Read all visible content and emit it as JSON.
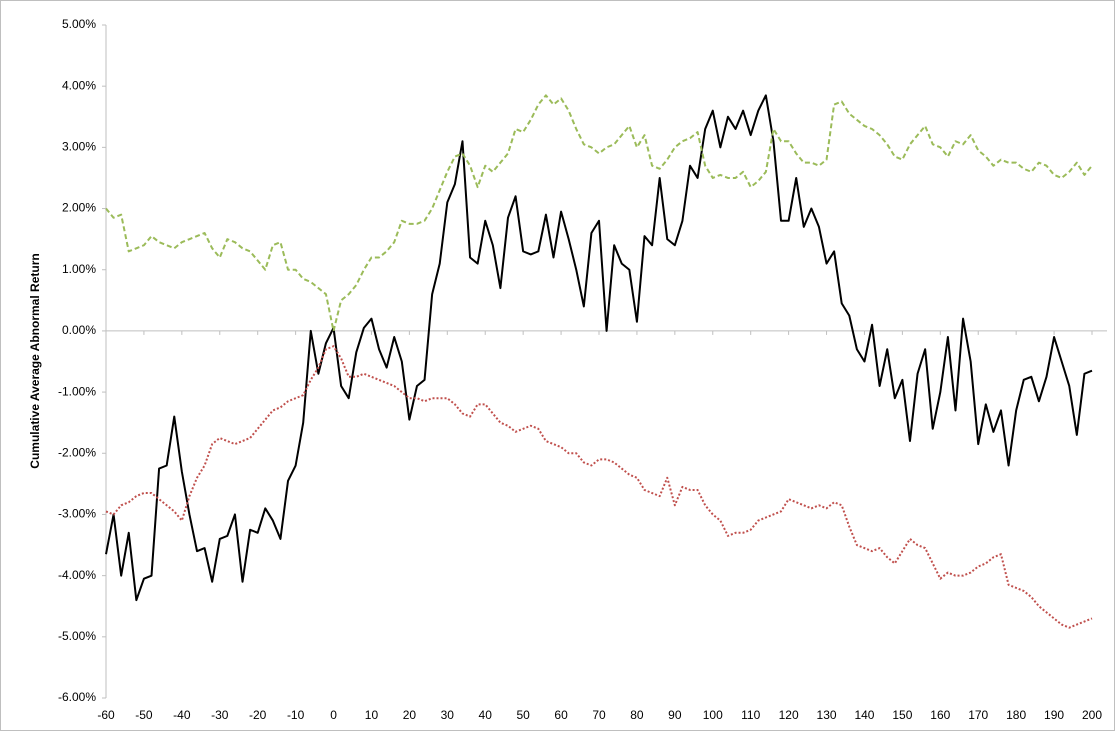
{
  "chart_data": {
    "type": "line",
    "y_label": "Cumulative Average Abnormal Return",
    "x": [
      -60,
      -58,
      -56,
      -54,
      -52,
      -50,
      -48,
      -46,
      -44,
      -42,
      -40,
      -38,
      -36,
      -34,
      -32,
      -30,
      -28,
      -26,
      -24,
      -22,
      -20,
      -18,
      -16,
      -14,
      -12,
      -10,
      -8,
      -6,
      -4,
      -2,
      0,
      2,
      4,
      6,
      8,
      10,
      12,
      14,
      16,
      18,
      20,
      22,
      24,
      26,
      28,
      30,
      32,
      34,
      36,
      38,
      40,
      42,
      44,
      46,
      48,
      50,
      52,
      54,
      56,
      58,
      60,
      62,
      64,
      66,
      68,
      70,
      72,
      74,
      76,
      78,
      80,
      82,
      84,
      86,
      88,
      90,
      92,
      94,
      96,
      98,
      100,
      102,
      104,
      106,
      108,
      110,
      112,
      114,
      116,
      118,
      120,
      122,
      124,
      126,
      128,
      130,
      132,
      134,
      136,
      138,
      140,
      142,
      144,
      146,
      148,
      150,
      152,
      154,
      156,
      158,
      160,
      162,
      164,
      166,
      168,
      170,
      172,
      174,
      176,
      178,
      180,
      182,
      184,
      186,
      188,
      190,
      192,
      194,
      196,
      198,
      200
    ],
    "series": [
      {
        "color": "#000000",
        "line_style": "solid",
        "values": [
          -3.65,
          -3.0,
          -4.0,
          -3.3,
          -4.4,
          -4.05,
          -4.0,
          -2.25,
          -2.2,
          -1.4,
          -2.3,
          -3.0,
          -3.6,
          -3.55,
          -4.1,
          -3.4,
          -3.35,
          -3.0,
          -4.1,
          -3.25,
          -3.3,
          -2.9,
          -3.1,
          -3.4,
          -2.45,
          -2.2,
          -1.5,
          0.0,
          -0.7,
          -0.2,
          0.05,
          -0.9,
          -1.1,
          -0.35,
          0.05,
          0.2,
          -0.3,
          -0.6,
          -0.1,
          -0.5,
          -1.45,
          -0.9,
          -0.8,
          0.6,
          1.1,
          2.1,
          2.4,
          3.1,
          1.2,
          1.1,
          1.8,
          1.4,
          0.7,
          1.85,
          2.2,
          1.3,
          1.25,
          1.3,
          1.9,
          1.2,
          1.95,
          1.5,
          1.0,
          0.4,
          1.6,
          1.8,
          0.0,
          1.4,
          1.1,
          1.0,
          0.15,
          1.55,
          1.4,
          2.5,
          1.5,
          1.4,
          1.8,
          2.7,
          2.5,
          3.3,
          3.6,
          3.0,
          3.5,
          3.3,
          3.6,
          3.2,
          3.6,
          3.85,
          3.1,
          1.8,
          1.8,
          2.5,
          1.7,
          2.0,
          1.7,
          1.1,
          1.3,
          0.45,
          0.25,
          -0.3,
          -0.5,
          0.1,
          -0.9,
          -0.3,
          -1.1,
          -0.8,
          -1.8,
          -0.7,
          -0.3,
          -1.6,
          -1.0,
          -0.1,
          -1.3,
          0.2,
          -0.5,
          -1.85,
          -1.2,
          -1.65,
          -1.3,
          -2.2,
          -1.3,
          -0.8,
          -0.75,
          -1.15,
          -0.75,
          -0.1,
          -0.5,
          -0.9,
          -1.7,
          -0.7,
          -0.65
        ]
      },
      {
        "color": "#9bbb59",
        "line_style": "dashed",
        "values": [
          2.0,
          1.85,
          1.9,
          1.3,
          1.35,
          1.4,
          1.55,
          1.45,
          1.4,
          1.35,
          1.45,
          1.5,
          1.55,
          1.6,
          1.35,
          1.2,
          1.5,
          1.45,
          1.35,
          1.3,
          1.15,
          1.0,
          1.4,
          1.45,
          1.0,
          1.0,
          0.85,
          0.8,
          0.7,
          0.6,
          0.0,
          0.5,
          0.6,
          0.75,
          1.0,
          1.2,
          1.2,
          1.3,
          1.45,
          1.8,
          1.75,
          1.75,
          1.8,
          2.0,
          2.3,
          2.6,
          2.85,
          2.9,
          2.7,
          2.35,
          2.7,
          2.6,
          2.75,
          2.9,
          3.3,
          3.25,
          3.45,
          3.7,
          3.85,
          3.7,
          3.8,
          3.6,
          3.3,
          3.05,
          3.0,
          2.9,
          3.0,
          3.05,
          3.2,
          3.35,
          3.0,
          3.2,
          2.7,
          2.65,
          2.8,
          3.0,
          3.1,
          3.15,
          3.25,
          2.7,
          2.5,
          2.55,
          2.5,
          2.5,
          2.6,
          2.35,
          2.45,
          2.6,
          3.3,
          3.1,
          3.1,
          2.9,
          2.75,
          2.75,
          2.7,
          2.8,
          3.7,
          3.75,
          3.55,
          3.45,
          3.35,
          3.3,
          3.2,
          3.05,
          2.85,
          2.8,
          3.05,
          3.2,
          3.35,
          3.05,
          3.0,
          2.85,
          3.1,
          3.05,
          3.2,
          2.95,
          2.85,
          2.7,
          2.8,
          2.75,
          2.75,
          2.65,
          2.6,
          2.75,
          2.7,
          2.55,
          2.5,
          2.6,
          2.75,
          2.55,
          2.7
        ]
      },
      {
        "color": "#c0504d",
        "line_style": "dotted",
        "values": [
          -2.95,
          -3.0,
          -2.85,
          -2.8,
          -2.7,
          -2.65,
          -2.65,
          -2.75,
          -2.85,
          -2.95,
          -3.1,
          -2.7,
          -2.4,
          -2.2,
          -1.85,
          -1.75,
          -1.8,
          -1.85,
          -1.8,
          -1.75,
          -1.6,
          -1.45,
          -1.3,
          -1.25,
          -1.15,
          -1.1,
          -1.05,
          -0.8,
          -0.6,
          -0.3,
          -0.25,
          -0.45,
          -0.75,
          -0.75,
          -0.7,
          -0.75,
          -0.8,
          -0.85,
          -0.9,
          -1.0,
          -1.1,
          -1.1,
          -1.15,
          -1.1,
          -1.1,
          -1.1,
          -1.2,
          -1.35,
          -1.4,
          -1.2,
          -1.2,
          -1.35,
          -1.5,
          -1.55,
          -1.65,
          -1.6,
          -1.55,
          -1.6,
          -1.8,
          -1.85,
          -1.9,
          -2.0,
          -2.0,
          -2.15,
          -2.2,
          -2.1,
          -2.1,
          -2.15,
          -2.25,
          -2.35,
          -2.4,
          -2.6,
          -2.65,
          -2.7,
          -2.4,
          -2.85,
          -2.55,
          -2.6,
          -2.6,
          -2.85,
          -3.0,
          -3.1,
          -3.35,
          -3.3,
          -3.3,
          -3.25,
          -3.1,
          -3.05,
          -3.0,
          -2.95,
          -2.75,
          -2.8,
          -2.85,
          -2.9,
          -2.85,
          -2.9,
          -2.8,
          -2.85,
          -3.2,
          -3.5,
          -3.55,
          -3.6,
          -3.55,
          -3.7,
          -3.8,
          -3.6,
          -3.4,
          -3.5,
          -3.55,
          -3.8,
          -4.05,
          -3.95,
          -4.0,
          -4.0,
          -3.95,
          -3.85,
          -3.8,
          -3.7,
          -3.65,
          -4.15,
          -4.2,
          -4.25,
          -4.35,
          -4.5,
          -4.6,
          -4.7,
          -4.8,
          -4.85,
          -4.8,
          -4.75,
          -4.7
        ]
      }
    ],
    "xlim": [
      -60,
      200
    ],
    "xticks": [
      -60,
      -50,
      -40,
      -30,
      -20,
      -10,
      0,
      10,
      20,
      30,
      40,
      50,
      60,
      70,
      80,
      90,
      100,
      110,
      120,
      130,
      140,
      150,
      160,
      170,
      180,
      190,
      200
    ],
    "ylim": [
      -6,
      5
    ],
    "yticks": [
      {
        "value": -6,
        "label": "-6.00%"
      },
      {
        "value": -5,
        "label": "-5.00%"
      },
      {
        "value": -4,
        "label": "-4.00%"
      },
      {
        "value": -3,
        "label": "-3.00%"
      },
      {
        "value": -2,
        "label": "-2.00%"
      },
      {
        "value": -1,
        "label": "-1.00%"
      },
      {
        "value": 0,
        "label": "0.00%"
      },
      {
        "value": 1,
        "label": "1.00%"
      },
      {
        "value": 2,
        "label": "2.00%"
      },
      {
        "value": 3,
        "label": "3.00%"
      },
      {
        "value": 4,
        "label": "4.00%"
      },
      {
        "value": 5,
        "label": "5.00%"
      }
    ],
    "grid": false
  }
}
